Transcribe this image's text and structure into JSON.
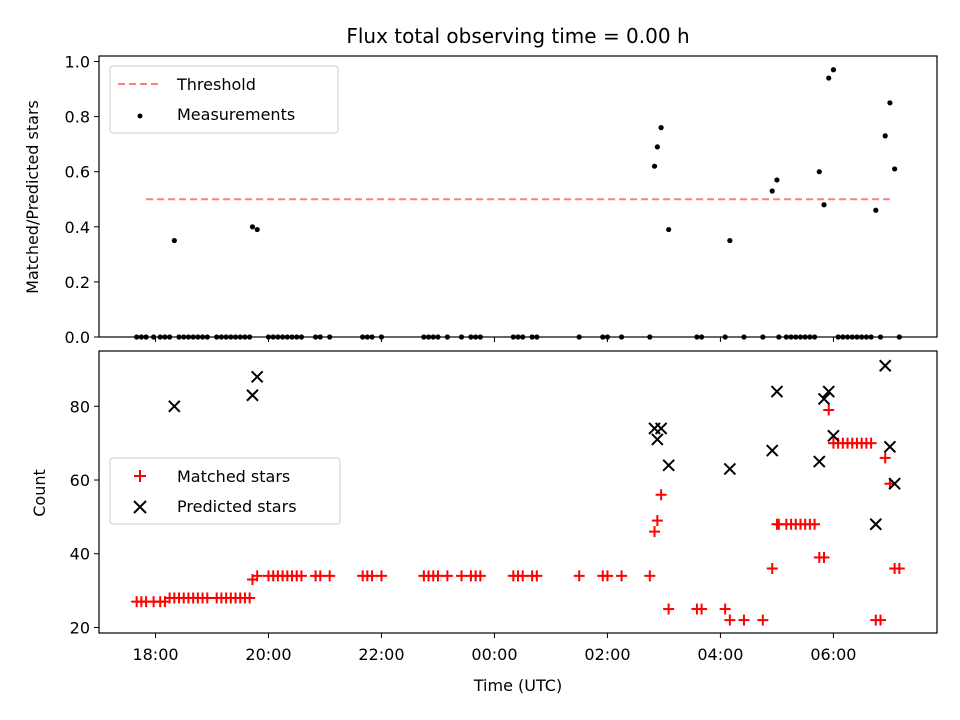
{
  "title": "Flux total observing time = 0.00 h",
  "chart_data": [
    {
      "type": "scatter",
      "panel": "top",
      "ylabel": "Matched/Predicted stars",
      "ylim": [
        0,
        1.02
      ],
      "yticks": [
        0.0,
        0.2,
        0.4,
        0.6,
        0.8,
        1.0
      ],
      "ytick_labels": [
        "0.0",
        "0.2",
        "0.4",
        "0.6",
        "0.8",
        "1.0"
      ],
      "legend": {
        "placement": "upper-left",
        "entries": [
          "Threshold",
          "Measurements"
        ]
      },
      "series": [
        {
          "name": "Threshold",
          "type": "line",
          "style": "dashed",
          "color": "#ff7f7f",
          "x": [
            "17:50",
            "07:00"
          ],
          "y": [
            0.5,
            0.5
          ]
        },
        {
          "name": "Measurements",
          "type": "scatter",
          "color": "#000000",
          "points": [
            [
              "17:40",
              0
            ],
            [
              "17:45",
              0
            ],
            [
              "17:50",
              0
            ],
            [
              "17:58",
              0
            ],
            [
              "18:05",
              0
            ],
            [
              "18:10",
              0
            ],
            [
              "18:15",
              0
            ],
            [
              "18:20",
              0.35
            ],
            [
              "18:25",
              0
            ],
            [
              "18:30",
              0
            ],
            [
              "18:35",
              0
            ],
            [
              "18:40",
              0
            ],
            [
              "18:45",
              0
            ],
            [
              "18:50",
              0
            ],
            [
              "18:55",
              0
            ],
            [
              "19:05",
              0
            ],
            [
              "19:10",
              0
            ],
            [
              "19:15",
              0
            ],
            [
              "19:20",
              0
            ],
            [
              "19:25",
              0
            ],
            [
              "19:30",
              0
            ],
            [
              "19:35",
              0
            ],
            [
              "19:40",
              0
            ],
            [
              "19:43",
              0.4
            ],
            [
              "19:48",
              0.39
            ],
            [
              "20:00",
              0
            ],
            [
              "20:05",
              0
            ],
            [
              "20:10",
              0
            ],
            [
              "20:15",
              0
            ],
            [
              "20:20",
              0
            ],
            [
              "20:25",
              0
            ],
            [
              "20:30",
              0
            ],
            [
              "20:35",
              0
            ],
            [
              "20:50",
              0
            ],
            [
              "20:55",
              0
            ],
            [
              "21:05",
              0
            ],
            [
              "21:40",
              0
            ],
            [
              "21:45",
              0
            ],
            [
              "21:50",
              0
            ],
            [
              "22:00",
              0
            ],
            [
              "22:45",
              0
            ],
            [
              "22:50",
              0
            ],
            [
              "22:55",
              0
            ],
            [
              "23:00",
              0
            ],
            [
              "23:10",
              0
            ],
            [
              "23:25",
              0
            ],
            [
              "23:35",
              0
            ],
            [
              "23:40",
              0
            ],
            [
              "23:45",
              0
            ],
            [
              "00:20",
              0
            ],
            [
              "00:25",
              0
            ],
            [
              "00:30",
              0
            ],
            [
              "00:40",
              0
            ],
            [
              "00:45",
              0
            ],
            [
              "01:30",
              0
            ],
            [
              "01:55",
              0
            ],
            [
              "02:00",
              0
            ],
            [
              "02:15",
              0
            ],
            [
              "02:45",
              0
            ],
            [
              "02:50",
              0.62
            ],
            [
              "02:53",
              0.69
            ],
            [
              "02:57",
              0.76
            ],
            [
              "03:05",
              0.39
            ],
            [
              "03:35",
              0
            ],
            [
              "03:40",
              0
            ],
            [
              "04:05",
              0
            ],
            [
              "04:10",
              0.35
            ],
            [
              "04:25",
              0
            ],
            [
              "04:45",
              0
            ],
            [
              "04:55",
              0.53
            ],
            [
              "05:00",
              0.57
            ],
            [
              "05:02",
              0
            ],
            [
              "05:10",
              0
            ],
            [
              "05:15",
              0
            ],
            [
              "05:20",
              0
            ],
            [
              "05:25",
              0
            ],
            [
              "05:30",
              0
            ],
            [
              "05:35",
              0
            ],
            [
              "05:40",
              0
            ],
            [
              "05:45",
              0.6
            ],
            [
              "05:50",
              0.48
            ],
            [
              "05:55",
              0.94
            ],
            [
              "06:00",
              0.97
            ],
            [
              "06:05",
              0
            ],
            [
              "06:10",
              0
            ],
            [
              "06:15",
              0
            ],
            [
              "06:20",
              0
            ],
            [
              "06:25",
              0
            ],
            [
              "06:30",
              0
            ],
            [
              "06:35",
              0
            ],
            [
              "06:40",
              0
            ],
            [
              "06:45",
              0.46
            ],
            [
              "06:50",
              0
            ],
            [
              "06:55",
              0.73
            ],
            [
              "07:00",
              0.85
            ],
            [
              "07:05",
              0.61
            ],
            [
              "07:10",
              0
            ]
          ]
        }
      ]
    },
    {
      "type": "scatter",
      "panel": "bottom",
      "xlabel": "Time (UTC)",
      "ylabel": "Count",
      "ylim": [
        18.5,
        95
      ],
      "yticks": [
        20,
        40,
        60,
        80
      ],
      "ytick_labels": [
        "20",
        "40",
        "60",
        "80"
      ],
      "x_range": [
        "17:00",
        "07:50"
      ],
      "xticks": [
        "18:00",
        "20:00",
        "22:00",
        "00:00",
        "02:00",
        "04:00",
        "06:00"
      ],
      "xtick_labels": [
        "18:00",
        "20:00",
        "22:00",
        "00:00",
        "02:00",
        "04:00",
        "06:00"
      ],
      "legend": {
        "placement": "center-left",
        "entries": [
          "Matched stars",
          "Predicted stars"
        ]
      },
      "series": [
        {
          "name": "Matched stars",
          "marker": "+",
          "color": "#ff0000",
          "points": [
            [
              "17:40",
              27
            ],
            [
              "17:45",
              27
            ],
            [
              "17:50",
              27
            ],
            [
              "17:58",
              27
            ],
            [
              "18:05",
              27
            ],
            [
              "18:10",
              27
            ],
            [
              "18:15",
              28
            ],
            [
              "18:20",
              28
            ],
            [
              "18:25",
              28
            ],
            [
              "18:30",
              28
            ],
            [
              "18:35",
              28
            ],
            [
              "18:40",
              28
            ],
            [
              "18:45",
              28
            ],
            [
              "18:50",
              28
            ],
            [
              "18:55",
              28
            ],
            [
              "19:05",
              28
            ],
            [
              "19:10",
              28
            ],
            [
              "19:15",
              28
            ],
            [
              "19:20",
              28
            ],
            [
              "19:25",
              28
            ],
            [
              "19:30",
              28
            ],
            [
              "19:35",
              28
            ],
            [
              "19:40",
              28
            ],
            [
              "19:43",
              33
            ],
            [
              "19:48",
              34
            ],
            [
              "20:00",
              34
            ],
            [
              "20:05",
              34
            ],
            [
              "20:10",
              34
            ],
            [
              "20:15",
              34
            ],
            [
              "20:20",
              34
            ],
            [
              "20:25",
              34
            ],
            [
              "20:30",
              34
            ],
            [
              "20:35",
              34
            ],
            [
              "20:50",
              34
            ],
            [
              "20:55",
              34
            ],
            [
              "21:05",
              34
            ],
            [
              "21:40",
              34
            ],
            [
              "21:45",
              34
            ],
            [
              "21:50",
              34
            ],
            [
              "22:00",
              34
            ],
            [
              "22:45",
              34
            ],
            [
              "22:50",
              34
            ],
            [
              "22:55",
              34
            ],
            [
              "23:00",
              34
            ],
            [
              "23:10",
              34
            ],
            [
              "23:25",
              34
            ],
            [
              "23:35",
              34
            ],
            [
              "23:40",
              34
            ],
            [
              "23:45",
              34
            ],
            [
              "00:20",
              34
            ],
            [
              "00:25",
              34
            ],
            [
              "00:30",
              34
            ],
            [
              "00:40",
              34
            ],
            [
              "00:45",
              34
            ],
            [
              "01:30",
              34
            ],
            [
              "01:55",
              34
            ],
            [
              "02:00",
              34
            ],
            [
              "02:15",
              34
            ],
            [
              "02:45",
              34
            ],
            [
              "02:50",
              46
            ],
            [
              "02:53",
              49
            ],
            [
              "02:57",
              56
            ],
            [
              "03:05",
              25
            ],
            [
              "03:35",
              25
            ],
            [
              "03:40",
              25
            ],
            [
              "04:05",
              25
            ],
            [
              "04:10",
              22
            ],
            [
              "04:25",
              22
            ],
            [
              "04:45",
              22
            ],
            [
              "04:55",
              36
            ],
            [
              "05:00",
              48
            ],
            [
              "05:02",
              48
            ],
            [
              "05:10",
              48
            ],
            [
              "05:15",
              48
            ],
            [
              "05:20",
              48
            ],
            [
              "05:25",
              48
            ],
            [
              "05:30",
              48
            ],
            [
              "05:35",
              48
            ],
            [
              "05:40",
              48
            ],
            [
              "05:45",
              39
            ],
            [
              "05:50",
              39
            ],
            [
              "05:55",
              79
            ],
            [
              "06:00",
              70
            ],
            [
              "06:05",
              70
            ],
            [
              "06:10",
              70
            ],
            [
              "06:15",
              70
            ],
            [
              "06:20",
              70
            ],
            [
              "06:25",
              70
            ],
            [
              "06:30",
              70
            ],
            [
              "06:35",
              70
            ],
            [
              "06:40",
              70
            ],
            [
              "06:45",
              22
            ],
            [
              "06:50",
              22
            ],
            [
              "06:55",
              66
            ],
            [
              "07:00",
              59
            ],
            [
              "07:05",
              36
            ],
            [
              "07:10",
              36
            ]
          ]
        },
        {
          "name": "Predicted stars",
          "marker": "x",
          "color": "#000000",
          "points": [
            [
              "18:20",
              80
            ],
            [
              "19:43",
              83
            ],
            [
              "19:48",
              88
            ],
            [
              "02:50",
              74
            ],
            [
              "02:53",
              71
            ],
            [
              "02:57",
              74
            ],
            [
              "03:05",
              64
            ],
            [
              "04:10",
              63
            ],
            [
              "04:55",
              68
            ],
            [
              "05:00",
              84
            ],
            [
              "05:45",
              65
            ],
            [
              "05:50",
              82
            ],
            [
              "05:55",
              84
            ],
            [
              "06:00",
              72
            ],
            [
              "06:45",
              48
            ],
            [
              "06:55",
              91
            ],
            [
              "07:00",
              69
            ],
            [
              "07:05",
              59
            ]
          ]
        }
      ]
    }
  ]
}
